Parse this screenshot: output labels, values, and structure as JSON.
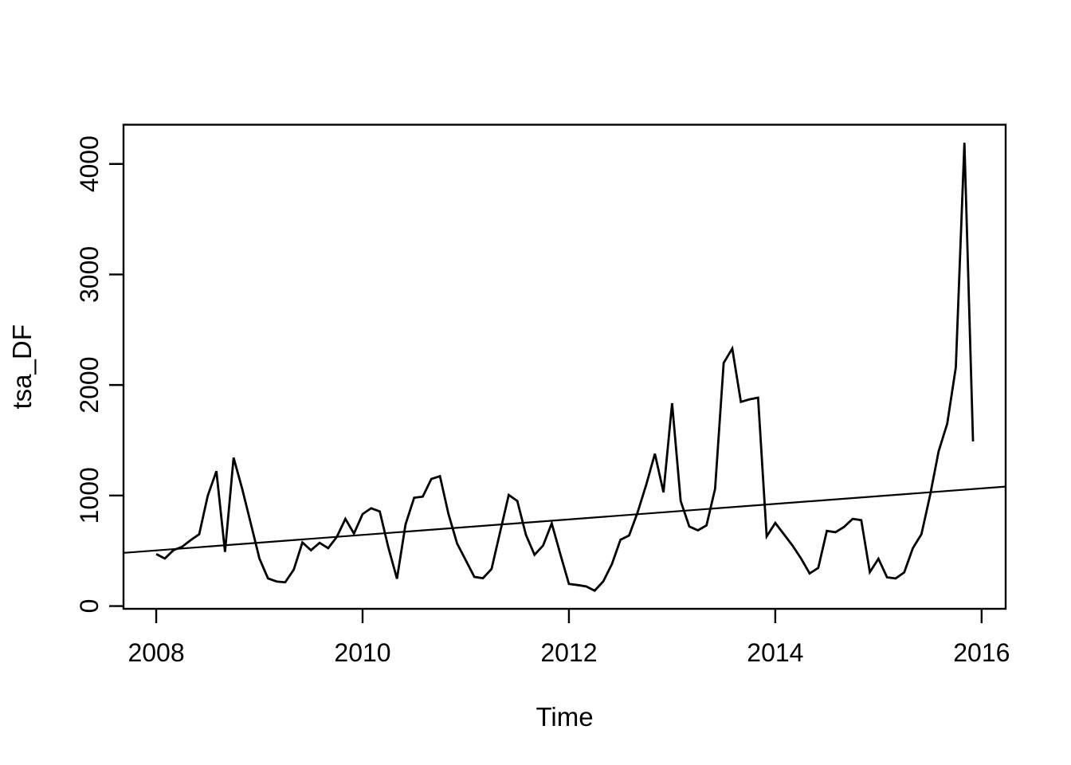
{
  "figure": {
    "kind": "R base graphics time-series plot",
    "background": "#ffffff",
    "foreground": "#000000"
  },
  "chart_data": {
    "type": "line",
    "title": "",
    "xlabel": "Time",
    "ylabel": "tsa_DF",
    "x_ticks": [
      2008,
      2010,
      2012,
      2014,
      2016
    ],
    "y_ticks": [
      0,
      1000,
      2000,
      3000,
      4000
    ],
    "xlim": [
      2007.683,
      2016.233
    ],
    "ylim": [
      -25,
      4355
    ],
    "grid": false,
    "legend_position": "none",
    "series": [
      {
        "name": "tsa_DF",
        "color": "#000000",
        "start_year": 2008,
        "start_month": 1,
        "frequency": 12,
        "values": [
          471,
          430,
          505,
          536,
          596,
          650,
          1000,
          1220,
          490,
          1342,
          1060,
          747,
          431,
          250,
          222,
          215,
          330,
          575,
          505,
          572,
          524,
          625,
          789,
          656,
          832,
          885,
          856,
          530,
          247,
          740,
          980,
          990,
          1150,
          1175,
          830,
          565,
          415,
          264,
          252,
          335,
          670,
          1005,
          950,
          644,
          464,
          548,
          748,
          470,
          200,
          190,
          178,
          139,
          224,
          380,
          600,
          638,
          850,
          1100,
          1378,
          1029,
          1835,
          950,
          720,
          685,
          730,
          1060,
          2200,
          2330,
          1847,
          1870,
          1885,
          630,
          752,
          650,
          548,
          430,
          295,
          345,
          680,
          668,
          716,
          789,
          777,
          307,
          428,
          260,
          250,
          305,
          524,
          650,
          1000,
          1400,
          1650,
          2160,
          4192,
          1490
        ]
      }
    ],
    "trend_line": {
      "name": "linear-trend",
      "color": "#000000",
      "x": [
        2007.683,
        2016.233
      ],
      "y": [
        481,
        1081
      ]
    }
  }
}
